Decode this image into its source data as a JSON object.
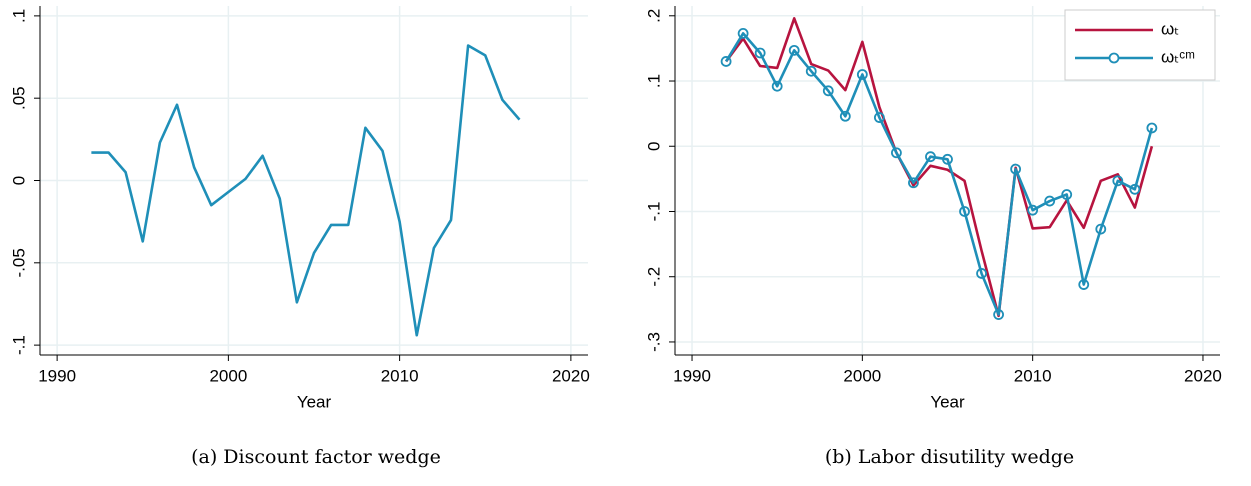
{
  "chart_data": [
    {
      "type": "line",
      "xlabel": "Year",
      "caption": "(a) Discount factor wedge",
      "x": [
        1992,
        1993,
        1994,
        1995,
        1996,
        1997,
        1998,
        1999,
        2000,
        2001,
        2002,
        2003,
        2004,
        2005,
        2006,
        2007,
        2008,
        2009,
        2010,
        2011,
        2012,
        2013,
        2014,
        2015,
        2016,
        2017
      ],
      "values": [
        0.017,
        0.017,
        0.005,
        -0.037,
        0.023,
        0.046,
        0.008,
        -0.015,
        -0.007,
        0.001,
        0.015,
        -0.011,
        -0.074,
        -0.044,
        -0.027,
        -0.027,
        0.032,
        0.018,
        -0.025,
        -0.094,
        -0.041,
        -0.024,
        0.082,
        0.076,
        0.049,
        0.037
      ],
      "color": "#1f8fb8",
      "xlim": [
        1989,
        2021
      ],
      "xticks": [
        1990,
        2000,
        2010,
        2020
      ],
      "ylim": [
        -0.106,
        0.106
      ],
      "yticks": [
        {
          "value": -0.1,
          "label": "-.1"
        },
        {
          "value": -0.05,
          "label": "-.05"
        },
        0,
        {
          "value": 0.05,
          "label": ".05"
        },
        {
          "value": 0.1,
          "label": ".1"
        }
      ],
      "grid": true
    },
    {
      "type": "line",
      "xlabel": "Year",
      "caption": "(b) Labor disutility wedge",
      "x": [
        1992,
        1993,
        1994,
        1995,
        1996,
        1997,
        1998,
        1999,
        2000,
        2001,
        2002,
        2003,
        2004,
        2005,
        2006,
        2007,
        2008,
        2009,
        2010,
        2011,
        2012,
        2013,
        2014,
        2015,
        2016,
        2017
      ],
      "series": [
        {
          "name": "ωₜ",
          "color": "#b7143f",
          "values": [
            0.13,
            0.165,
            0.123,
            0.12,
            0.196,
            0.126,
            0.116,
            0.086,
            0.16,
            0.06,
            -0.01,
            -0.06,
            -0.03,
            -0.036,
            -0.053,
            -0.16,
            -0.26,
            -0.033,
            -0.126,
            -0.124,
            -0.083,
            -0.125,
            -0.053,
            -0.043,
            -0.094,
            0.0
          ]
        },
        {
          "name": "ωₜᶜᵐ",
          "color": "#1f8fb8",
          "marker": "circle",
          "values": [
            0.13,
            0.173,
            0.143,
            0.092,
            0.147,
            0.115,
            0.085,
            0.046,
            0.11,
            0.044,
            -0.01,
            -0.056,
            -0.016,
            -0.02,
            -0.1,
            -0.195,
            -0.258,
            -0.035,
            -0.098,
            -0.084,
            -0.074,
            -0.212,
            -0.127,
            -0.053,
            -0.066,
            0.028
          ]
        }
      ],
      "legend": "top right",
      "xlim": [
        1989,
        2021
      ],
      "xticks": [
        1990,
        2000,
        2010,
        2020
      ],
      "ylim": [
        -0.32,
        0.215
      ],
      "yticks": [
        {
          "value": -0.3,
          "label": "-.3"
        },
        {
          "value": -0.2,
          "label": "-.2"
        },
        {
          "value": -0.1,
          "label": "-.1"
        },
        0,
        {
          "value": 0.1,
          "label": ".1"
        },
        {
          "value": 0.2,
          "label": ".2"
        }
      ],
      "grid": true
    }
  ]
}
